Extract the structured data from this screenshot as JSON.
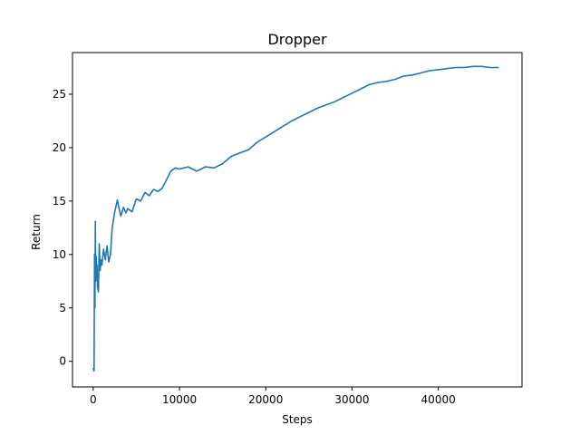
{
  "chart_data": {
    "type": "line",
    "title": "Dropper",
    "xlabel": "Steps",
    "ylabel": "Return",
    "xlim": [
      -2400,
      49700
    ],
    "ylim": [
      -2.4,
      28.9
    ],
    "x_ticks": [
      0,
      10000,
      20000,
      30000,
      40000
    ],
    "x_tick_labels": [
      "0",
      "10000",
      "20000",
      "30000",
      "40000"
    ],
    "y_ticks": [
      0,
      5,
      10,
      15,
      20,
      25
    ],
    "y_tick_labels": [
      "0",
      "5",
      "10",
      "15",
      "20",
      "25"
    ],
    "grid": false,
    "line_color": "#1f77b4",
    "series": [
      {
        "x": [
          0,
          100,
          150,
          200,
          250,
          300,
          350,
          400,
          450,
          500,
          600,
          700,
          800,
          900,
          1000,
          1200,
          1400,
          1600,
          1800,
          2000,
          2200,
          2500,
          2800,
          3000,
          3200,
          3500,
          3800,
          4000,
          4500,
          5000,
          5500,
          6000,
          6500,
          7000,
          7500,
          8000,
          8500,
          9000,
          9500,
          10000,
          11000,
          12000,
          13000,
          14000,
          15000,
          16000,
          17000,
          18000,
          19000,
          20000,
          21000,
          22000,
          23000,
          24000,
          25000,
          26000,
          27000,
          28000,
          29000,
          30000,
          31000,
          32000,
          33000,
          34000,
          35000,
          36000,
          37000,
          38000,
          39000,
          40000,
          41000,
          42000,
          43000,
          44000,
          45000,
          46000,
          47000
        ],
        "y": [
          -0.6,
          -0.9,
          10.0,
          5.0,
          13.1,
          7.5,
          9.8,
          8.2,
          9.0,
          7.0,
          6.5,
          11.0,
          8.5,
          9.5,
          9.0,
          10.5,
          9.5,
          10.8,
          9.3,
          10.0,
          12.5,
          14.0,
          15.1,
          14.3,
          13.6,
          14.4,
          13.9,
          14.3,
          14.0,
          15.2,
          15.0,
          15.8,
          15.5,
          16.1,
          15.9,
          16.2,
          17.0,
          17.8,
          18.1,
          18.0,
          18.2,
          17.8,
          18.2,
          18.1,
          18.5,
          19.2,
          19.5,
          19.8,
          20.5,
          21.0,
          21.5,
          22.0,
          22.5,
          22.9,
          23.3,
          23.7,
          24.0,
          24.3,
          24.7,
          25.1,
          25.5,
          25.9,
          26.1,
          26.2,
          26.4,
          26.7,
          26.8,
          27.0,
          27.2,
          27.3,
          27.4,
          27.5,
          27.5,
          27.6,
          27.6,
          27.5,
          27.5
        ]
      }
    ]
  }
}
